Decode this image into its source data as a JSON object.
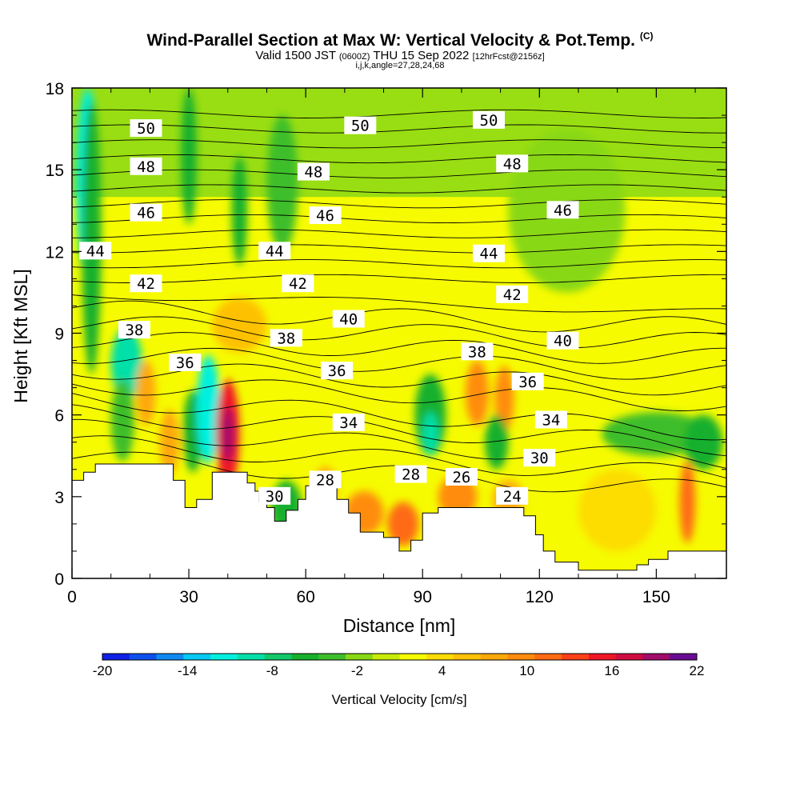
{
  "header": {
    "title": "Wind-Parallel Section at Max W: Vertical Velocity & Pot.Temp.",
    "copyright": "(C)",
    "valid_prefix": "Valid 1500 JST",
    "valid_utc": "(0600Z)",
    "valid_date": "THU 15 Sep 2022",
    "forecast": "[12hrFcst@2156z]",
    "info": "i,j,k,angle=27,28,24,68"
  },
  "chart_data": {
    "type": "heatmap",
    "title": "Wind-Parallel Section at Max W: Vertical Velocity & Pot.Temp.",
    "xlabel": "Distance [nm]",
    "ylabel": "Height [Kft MSL]",
    "xlim": [
      0,
      168
    ],
    "ylim": [
      0,
      18
    ],
    "x_ticks": [
      0,
      30,
      60,
      90,
      120,
      150
    ],
    "x_tick_labels": [
      "0",
      "30",
      "60",
      "90",
      "120",
      "150"
    ],
    "y_ticks": [
      0,
      3,
      6,
      9,
      12,
      15,
      18
    ],
    "y_tick_labels": [
      "0",
      "3",
      "6",
      "9",
      "12",
      "15",
      "18"
    ],
    "terrain": [
      [
        0,
        3.6
      ],
      [
        3,
        3.6
      ],
      [
        3,
        3.9
      ],
      [
        6,
        3.9
      ],
      [
        6,
        4.2
      ],
      [
        26,
        4.2
      ],
      [
        26,
        3.6
      ],
      [
        29,
        3.6
      ],
      [
        29,
        2.6
      ],
      [
        32,
        2.6
      ],
      [
        32,
        2.9
      ],
      [
        36,
        2.9
      ],
      [
        36,
        3.9
      ],
      [
        45,
        3.9
      ],
      [
        45,
        3.5
      ],
      [
        47,
        3.5
      ],
      [
        47,
        3.2
      ],
      [
        48,
        3.2
      ],
      [
        48,
        2.8
      ],
      [
        50,
        2.8
      ],
      [
        50,
        2.6
      ],
      [
        52,
        2.6
      ],
      [
        52,
        2.1
      ],
      [
        55,
        2.1
      ],
      [
        55,
        2.5
      ],
      [
        58,
        2.5
      ],
      [
        58,
        2.9
      ],
      [
        60,
        2.9
      ],
      [
        60,
        3.4
      ],
      [
        62,
        3.4
      ],
      [
        62,
        3.8
      ],
      [
        66,
        3.8
      ],
      [
        66,
        3.4
      ],
      [
        68,
        3.4
      ],
      [
        68,
        2.9
      ],
      [
        71,
        2.9
      ],
      [
        71,
        2.4
      ],
      [
        74,
        2.4
      ],
      [
        74,
        1.7
      ],
      [
        80,
        1.7
      ],
      [
        80,
        1.5
      ],
      [
        84,
        1.5
      ],
      [
        84,
        1.0
      ],
      [
        87,
        1.0
      ],
      [
        87,
        1.4
      ],
      [
        90,
        1.4
      ],
      [
        90,
        2.4
      ],
      [
        94,
        2.4
      ],
      [
        94,
        2.6
      ],
      [
        116,
        2.6
      ],
      [
        116,
        2.3
      ],
      [
        119,
        2.3
      ],
      [
        119,
        1.6
      ],
      [
        121,
        1.6
      ],
      [
        121,
        1.0
      ],
      [
        124,
        1.0
      ],
      [
        124,
        0.6
      ],
      [
        130,
        0.6
      ],
      [
        130,
        0.3
      ],
      [
        145,
        0.3
      ],
      [
        145,
        0.5
      ],
      [
        148,
        0.5
      ],
      [
        148,
        0.7
      ],
      [
        153,
        0.7
      ],
      [
        153,
        1.0
      ],
      [
        168,
        1.0
      ]
    ],
    "potential_temperature_contours": [
      {
        "value": 50,
        "labels": [
          [
            19,
            16.5
          ],
          [
            74,
            16.6
          ],
          [
            107,
            16.8
          ]
        ]
      },
      {
        "value": 48,
        "labels": [
          [
            19,
            15.1
          ],
          [
            62,
            14.9
          ],
          [
            113,
            15.2
          ]
        ]
      },
      {
        "value": 46,
        "labels": [
          [
            19,
            13.4
          ],
          [
            65,
            13.3
          ],
          [
            126,
            13.5
          ]
        ]
      },
      {
        "value": 44,
        "labels": [
          [
            6,
            12.0
          ],
          [
            52,
            12.0
          ],
          [
            107,
            11.9
          ]
        ]
      },
      {
        "value": 42,
        "labels": [
          [
            19,
            10.8
          ],
          [
            58,
            10.8
          ],
          [
            113,
            10.4
          ]
        ]
      },
      {
        "value": 40,
        "labels": [
          [
            71,
            9.5
          ],
          [
            126,
            8.7
          ]
        ]
      },
      {
        "value": 38,
        "labels": [
          [
            16,
            9.1
          ],
          [
            55,
            8.8
          ],
          [
            104,
            8.3
          ]
        ]
      },
      {
        "value": 36,
        "labels": [
          [
            29,
            7.9
          ],
          [
            68,
            7.6
          ],
          [
            117,
            7.2
          ]
        ]
      },
      {
        "value": 34,
        "labels": [
          [
            71,
            5.7
          ],
          [
            123,
            5.8
          ]
        ]
      },
      {
        "value": 30,
        "labels": [
          [
            52,
            3.0
          ],
          [
            120,
            4.4
          ]
        ]
      },
      {
        "value": 28,
        "labels": [
          [
            65,
            3.6
          ],
          [
            87,
            3.8
          ]
        ]
      },
      {
        "value": 26,
        "labels": [
          [
            100,
            3.7
          ]
        ]
      },
      {
        "value": 24,
        "labels": [
          [
            113,
            3.0
          ]
        ]
      }
    ],
    "vertical_velocity_features": [
      {
        "x": 4,
        "y": 14.5,
        "rx": 3,
        "ry": 3.5,
        "w": -12
      },
      {
        "x": 5,
        "y": 12.5,
        "rx": 2.5,
        "ry": 5,
        "w": -6
      },
      {
        "x": 14,
        "y": 7.9,
        "rx": 4,
        "ry": 1.3,
        "w": -10
      },
      {
        "x": 19,
        "y": 6.8,
        "rx": 2.5,
        "ry": 1.2,
        "w": 8
      },
      {
        "x": 13,
        "y": 5.8,
        "rx": 3,
        "ry": 1.5,
        "w": -4
      },
      {
        "x": 25,
        "y": 5.0,
        "rx": 2.5,
        "ry": 1.2,
        "w": 8
      },
      {
        "x": 30,
        "y": 15.5,
        "rx": 2,
        "ry": 2.5,
        "w": -6
      },
      {
        "x": 31,
        "y": 5.4,
        "rx": 2.5,
        "ry": 1.5,
        "w": -6
      },
      {
        "x": 35,
        "y": 6.2,
        "rx": 3,
        "ry": 2,
        "w": -12
      },
      {
        "x": 40,
        "y": 5.3,
        "rx": 3,
        "ry": 2,
        "w": 16
      },
      {
        "x": 40,
        "y": 5.3,
        "rx": 1.5,
        "ry": 1,
        "w": 20
      },
      {
        "x": 43,
        "y": 9.3,
        "rx": 7,
        "ry": 1,
        "w": 6
      },
      {
        "x": 43,
        "y": 13.5,
        "rx": 2,
        "ry": 2,
        "w": -6
      },
      {
        "x": 54,
        "y": 14.5,
        "rx": 4,
        "ry": 2.5,
        "w": -4
      },
      {
        "x": 55,
        "y": 2.6,
        "rx": 4,
        "ry": 1,
        "w": -6
      },
      {
        "x": 65,
        "y": 3.3,
        "rx": 3,
        "ry": 0.8,
        "w": 8
      },
      {
        "x": 75,
        "y": 2.4,
        "rx": 5,
        "ry": 0.8,
        "w": 10
      },
      {
        "x": 85,
        "y": 2.0,
        "rx": 4,
        "ry": 0.8,
        "w": 12
      },
      {
        "x": 92,
        "y": 6.0,
        "rx": 4,
        "ry": 1.5,
        "w": -6
      },
      {
        "x": 92,
        "y": 5.3,
        "rx": 2,
        "ry": 0.8,
        "w": -10
      },
      {
        "x": 99,
        "y": 3.0,
        "rx": 5,
        "ry": 0.8,
        "w": 10
      },
      {
        "x": 104,
        "y": 6.8,
        "rx": 3,
        "ry": 1.2,
        "w": 10
      },
      {
        "x": 111,
        "y": 6.6,
        "rx": 2.5,
        "ry": 1.2,
        "w": 10
      },
      {
        "x": 109,
        "y": 5.0,
        "rx": 3,
        "ry": 1,
        "w": -6
      },
      {
        "x": 112,
        "y": 2.9,
        "rx": 4,
        "ry": 0.7,
        "w": 8
      },
      {
        "x": 127,
        "y": 13.5,
        "rx": 15,
        "ry": 3,
        "w": -2
      },
      {
        "x": 150,
        "y": 5.3,
        "rx": 14,
        "ry": 0.8,
        "w": -4
      },
      {
        "x": 158,
        "y": 2.8,
        "rx": 2,
        "ry": 1.5,
        "w": 12
      },
      {
        "x": 162,
        "y": 5.0,
        "rx": 5,
        "ry": 1,
        "w": -6
      },
      {
        "x": 140,
        "y": 2.5,
        "rx": 10,
        "ry": 1.5,
        "w": 4
      }
    ],
    "colorbar": {
      "title": "Vertical Velocity [cm/s]",
      "range": [
        -20,
        22
      ],
      "step": 2,
      "tick_labels": [
        "-20",
        "-14",
        "-8",
        "-2",
        "4",
        "10",
        "16",
        "22"
      ],
      "colors": [
        "#1020e6",
        "#0f4fee",
        "#0f89f0",
        "#05c8f4",
        "#03f0df",
        "#04e0a8",
        "#12c868",
        "#17b02e",
        "#3ebe2a",
        "#88d815",
        "#c8eb08",
        "#f6fb00",
        "#fddc04",
        "#fec106",
        "#fea80a",
        "#ff8c0c",
        "#fe6a12",
        "#fd4016",
        "#ef1626",
        "#cf0c40",
        "#a20c6a",
        "#6a0c93"
      ]
    }
  }
}
